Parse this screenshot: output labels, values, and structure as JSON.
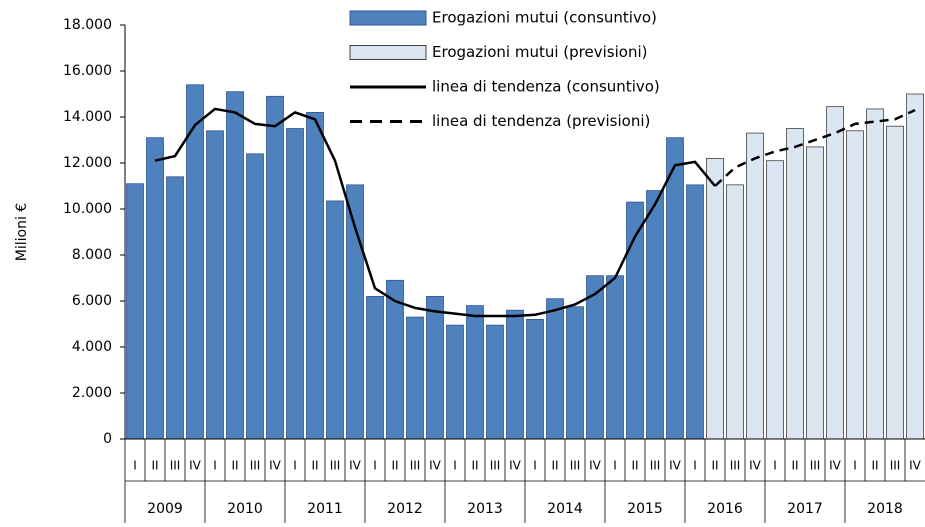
{
  "chart_data": {
    "type": "bar",
    "y_label": "Milioni €",
    "categories": [
      "I",
      "II",
      "III",
      "IV",
      "I",
      "II",
      "III",
      "IV",
      "I",
      "II",
      "III",
      "IV",
      "I",
      "II",
      "III",
      "IV",
      "I",
      "II",
      "III",
      "IV",
      "I",
      "II",
      "III",
      "IV",
      "I",
      "II",
      "III",
      "IV",
      "I",
      "II",
      "III",
      "IV",
      "I",
      "II",
      "III",
      "IV",
      "I",
      "II",
      "III",
      "IV"
    ],
    "years": [
      "2009",
      "2010",
      "2011",
      "2012",
      "2013",
      "2014",
      "2015",
      "2016",
      "2017",
      "2018"
    ],
    "ylim": [
      0,
      18000
    ],
    "yticks": [
      0,
      {
        "value": 2000,
        "label": "2.000"
      },
      {
        "value": 4000,
        "label": "4.000"
      },
      {
        "value": 6000,
        "label": "6.000"
      },
      {
        "value": 8000,
        "label": "8.000"
      },
      {
        "value": 10000,
        "label": "10.000"
      },
      {
        "value": 12000,
        "label": "12.000"
      },
      {
        "value": 14000,
        "label": "14.000"
      },
      {
        "value": 16000,
        "label": "16.000"
      },
      {
        "value": 18000,
        "label": "18.000"
      }
    ],
    "series": [
      {
        "name": "Erogazioni mutui (consuntivo)",
        "type": "bar",
        "color": "#4f81bd",
        "values": [
          11100,
          13100,
          11400,
          15400,
          13400,
          15100,
          12400,
          14900,
          13500,
          14200,
          10350,
          11050,
          6200,
          6900,
          5300,
          6200,
          4950,
          5800,
          4950,
          5600,
          5200,
          6100,
          5750,
          7100,
          7100,
          10300,
          10800,
          13100,
          11050,
          null,
          null,
          null,
          null,
          null,
          null,
          null,
          null,
          null,
          null,
          null
        ]
      },
      {
        "name": "Erogazioni mutui (previsioni)",
        "type": "bar",
        "color": "#dce6f2",
        "values": [
          null,
          null,
          null,
          null,
          null,
          null,
          null,
          null,
          null,
          null,
          null,
          null,
          null,
          null,
          null,
          null,
          null,
          null,
          null,
          null,
          null,
          null,
          null,
          null,
          null,
          null,
          null,
          null,
          null,
          12200,
          11050,
          13300,
          12100,
          13500,
          12700,
          14450,
          13400,
          14350,
          13600,
          15000
        ]
      },
      {
        "name": "linea di tendenza (consuntivo)",
        "type": "line",
        "color": "#000000",
        "dashed": false,
        "values": [
          null,
          12100,
          12300,
          13650,
          14350,
          14200,
          13700,
          13600,
          14200,
          13900,
          12100,
          9200,
          6550,
          6000,
          5700,
          5550,
          5450,
          5350,
          5350,
          5350,
          5400,
          5600,
          5850,
          6300,
          7000,
          8800,
          10200,
          11900,
          12050,
          11000,
          null,
          null,
          null,
          null,
          null,
          null,
          null,
          null,
          null,
          null
        ]
      },
      {
        "name": "linea di tendenza (previsioni)",
        "type": "line",
        "color": "#000000",
        "dashed": true,
        "values": [
          null,
          null,
          null,
          null,
          null,
          null,
          null,
          null,
          null,
          null,
          null,
          null,
          null,
          null,
          null,
          null,
          null,
          null,
          null,
          null,
          null,
          null,
          null,
          null,
          null,
          null,
          null,
          null,
          null,
          11000,
          11800,
          12200,
          12500,
          12700,
          13000,
          13300,
          13700,
          13800,
          13900,
          14300
        ]
      }
    ]
  }
}
